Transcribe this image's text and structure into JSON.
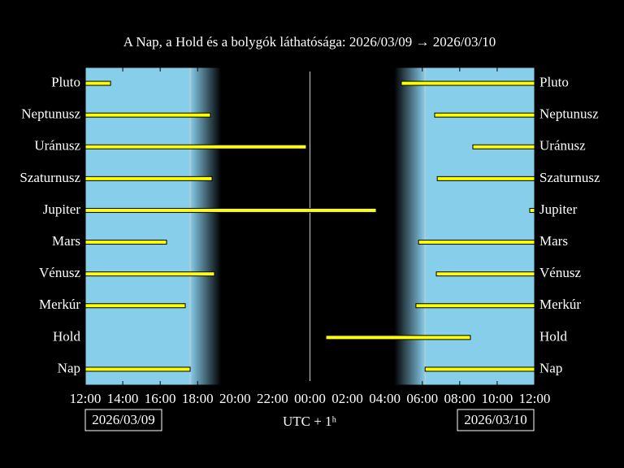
{
  "chart_data": {
    "type": "timeline",
    "title": "A Nap, a Hold és a bolygók láthatósága: 2026/03/09 → 2026/03/10",
    "xlabel": "UTC + 1ʰ",
    "date_start": "2026/03/09",
    "date_end": "2026/03/10",
    "categories": [
      "Pluto",
      "Neptunusz",
      "Uránusz",
      "Szaturnusz",
      "Jupiter",
      "Mars",
      "Vénusz",
      "Merkúr",
      "Hold",
      "Nap"
    ],
    "segments": [
      [
        [
          12,
          13.35
        ],
        [
          28.88,
          36
        ]
      ],
      [
        [
          12,
          18.68
        ],
        [
          30.66,
          36
        ]
      ],
      [
        [
          12,
          23.8
        ],
        [
          32.7,
          36
        ]
      ],
      [
        [
          12,
          18.77
        ],
        [
          30.8,
          36
        ]
      ],
      [
        [
          12,
          27.54
        ],
        [
          35.74,
          36
        ]
      ],
      [
        [
          12,
          16.34
        ],
        [
          29.8,
          36
        ]
      ],
      [
        [
          12,
          18.9
        ],
        [
          30.75,
          36
        ]
      ],
      [
        [
          12,
          17.34
        ],
        [
          29.66,
          36
        ]
      ],
      [
        [
          24.85,
          32.57
        ]
      ],
      [
        [
          12,
          17.6
        ],
        [
          30.15,
          36
        ]
      ]
    ],
    "color": "#ffff00",
    "xlim": [
      12,
      36
    ],
    "xticks": [
      {
        "value": 12,
        "label": "12:00"
      },
      {
        "value": 14,
        "label": "14:00"
      },
      {
        "value": 16,
        "label": "16:00"
      },
      {
        "value": 18,
        "label": "18:00"
      },
      {
        "value": 20,
        "label": "20:00"
      },
      {
        "value": 22,
        "label": "22:00"
      },
      {
        "value": 24,
        "label": "00:00"
      },
      {
        "value": 26,
        "label": "02:00"
      },
      {
        "value": 28,
        "label": "04:00"
      },
      {
        "value": 30,
        "label": "06:00"
      },
      {
        "value": 32,
        "label": "08:00"
      },
      {
        "value": 34,
        "label": "10:00"
      },
      {
        "value": 36,
        "label": "12:00"
      }
    ]
  }
}
